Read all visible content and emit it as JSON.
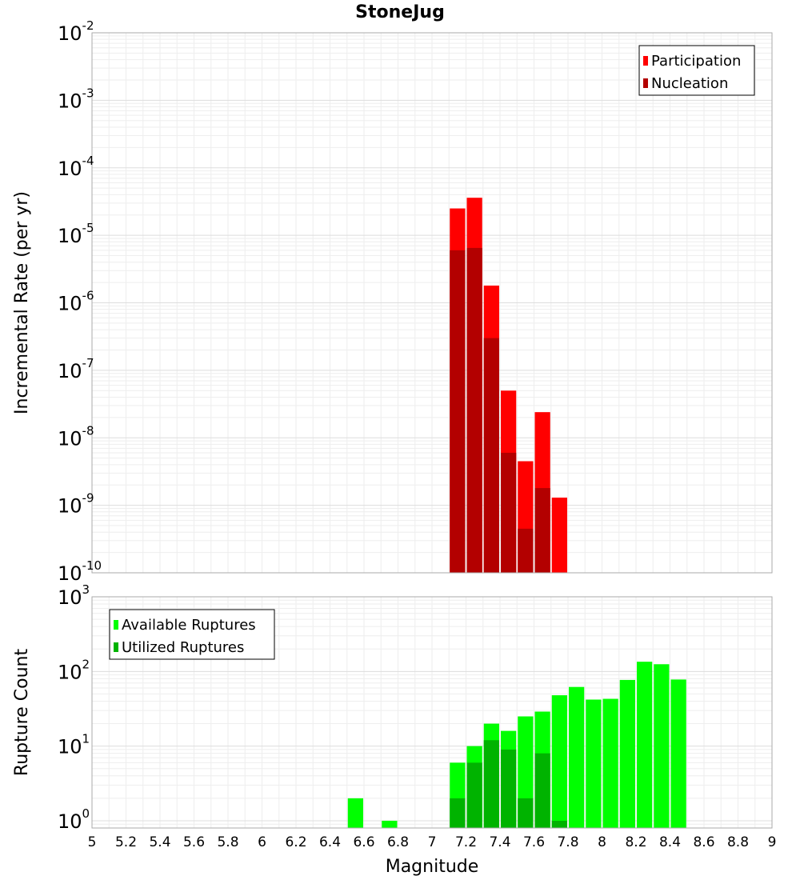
{
  "chart_data": [
    {
      "type": "bar",
      "panel": "top",
      "title": "StoneJug",
      "ylabel": "Incremental Rate (per yr)",
      "xlim": [
        5,
        9
      ],
      "ylim": [
        1e-10,
        0.01
      ],
      "yscale": "log",
      "y_ticks": [
        {
          "base": "10",
          "exp": "-10"
        },
        {
          "base": "10",
          "exp": "-9"
        },
        {
          "base": "10",
          "exp": "-8"
        },
        {
          "base": "10",
          "exp": "-7"
        },
        {
          "base": "10",
          "exp": "-6"
        },
        {
          "base": "10",
          "exp": "-5"
        },
        {
          "base": "10",
          "exp": "-4"
        },
        {
          "base": "10",
          "exp": "-3"
        },
        {
          "base": "10",
          "exp": "-2"
        }
      ],
      "grid": true,
      "legend": "top-right",
      "bin_width": 0.1,
      "series": [
        {
          "name": "Participation",
          "color": "#ff0000",
          "x": [
            7.15,
            7.25,
            7.35,
            7.45,
            7.55,
            7.65,
            7.75
          ],
          "values": [
            2.5e-05,
            3.6e-05,
            1.8e-06,
            5e-08,
            4.5e-09,
            2.4e-08,
            1.3e-09
          ]
        },
        {
          "name": "Nucleation",
          "color": "#b30000",
          "x": [
            7.15,
            7.25,
            7.35,
            7.45,
            7.55,
            7.65
          ],
          "values": [
            6e-06,
            6.5e-06,
            3e-07,
            6e-09,
            4.5e-10,
            1.8e-09
          ]
        }
      ]
    },
    {
      "type": "bar",
      "panel": "bottom",
      "ylabel": "Rupture Count",
      "xlabel": "Magnitude",
      "xlim": [
        5,
        9
      ],
      "ylim": [
        0.8,
        1000
      ],
      "yscale": "log",
      "x_ticks": [
        "5",
        "5.2",
        "5.4",
        "5.6",
        "5.8",
        "6",
        "6.2",
        "6.4",
        "6.6",
        "6.8",
        "7",
        "7.2",
        "7.4",
        "7.6",
        "7.8",
        "8",
        "8.2",
        "8.4",
        "8.6",
        "8.8",
        "9"
      ],
      "y_ticks": [
        {
          "base": "10",
          "exp": "0"
        },
        {
          "base": "10",
          "exp": "1"
        },
        {
          "base": "10",
          "exp": "2"
        },
        {
          "base": "10",
          "exp": "3"
        }
      ],
      "grid": true,
      "legend": "top-left",
      "bin_width": 0.1,
      "series": [
        {
          "name": "Available Ruptures",
          "color": "#00ff00",
          "x": [
            6.55,
            6.75,
            7.15,
            7.25,
            7.35,
            7.45,
            7.55,
            7.65,
            7.75,
            7.85,
            7.95,
            8.05,
            8.15,
            8.25,
            8.35,
            8.45
          ],
          "values": [
            2,
            1,
            6,
            10,
            20,
            16,
            25,
            29,
            48,
            62,
            42,
            43,
            77,
            135,
            125,
            78
          ]
        },
        {
          "name": "Utilized Ruptures",
          "color": "#00b300",
          "x": [
            7.15,
            7.25,
            7.35,
            7.45,
            7.55,
            7.65,
            7.75
          ],
          "values": [
            2,
            6,
            12,
            9,
            2,
            8,
            1
          ]
        }
      ]
    }
  ]
}
